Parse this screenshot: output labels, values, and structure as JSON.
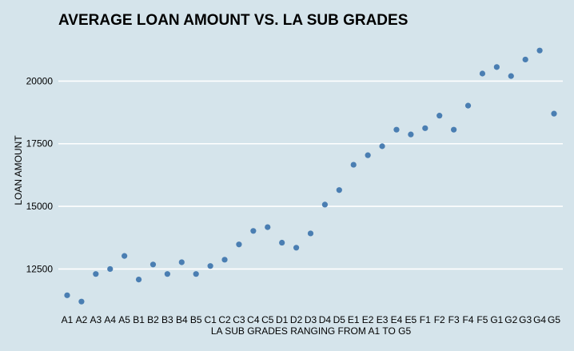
{
  "chart_data": {
    "type": "scatter",
    "title": "AVERAGE LOAN AMOUNT VS. LA SUB GRADES",
    "xlabel": "LA SUB GRADES RANGING FROM A1 TO G5",
    "ylabel": "LOAN AMOUNT",
    "categories": [
      "A1",
      "A2",
      "A3",
      "A4",
      "A5",
      "B1",
      "B2",
      "B3",
      "B4",
      "B5",
      "C1",
      "C2",
      "C3",
      "C4",
      "C5",
      "D1",
      "D2",
      "D3",
      "D4",
      "D5",
      "E1",
      "E2",
      "E3",
      "E4",
      "E5",
      "F1",
      "F2",
      "F3",
      "F4",
      "F5",
      "G1",
      "G2",
      "G3",
      "G4",
      "G5"
    ],
    "values": [
      11450,
      11200,
      12300,
      12500,
      13020,
      12080,
      12680,
      12300,
      12770,
      12300,
      12620,
      12870,
      13480,
      14020,
      14170,
      13550,
      13350,
      13920,
      15070,
      15650,
      16660,
      17040,
      17400,
      18060,
      17870,
      18120,
      18620,
      18060,
      19020,
      20300,
      20560,
      20200,
      20860,
      21220,
      18700
    ],
    "yticks": [
      12500,
      15000,
      17500,
      20000
    ],
    "ylim": [
      10950,
      21800
    ],
    "grid": "horizontal major",
    "legend": "none",
    "point_color": "#4a7eb2",
    "background_color": "#d5e4eb"
  }
}
